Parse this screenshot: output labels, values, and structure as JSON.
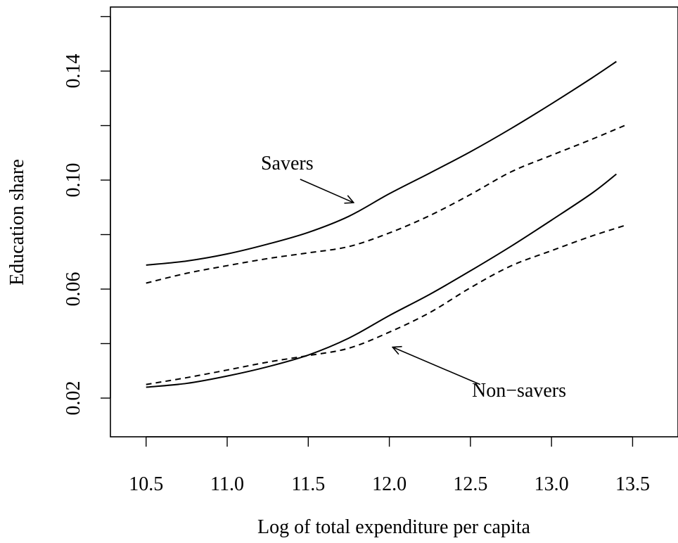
{
  "chart_data": {
    "type": "line",
    "xlabel": "Log of total expenditure per capita",
    "ylabel": "Education share",
    "xlim": [
      10.28,
      13.78
    ],
    "ylim": [
      0.0058,
      0.1635
    ],
    "xticks": [
      10.5,
      11.0,
      11.5,
      12.0,
      12.5,
      13.0,
      13.5
    ],
    "xtick_labels": [
      "10.5",
      "11.0",
      "11.5",
      "12.0",
      "12.5",
      "13.0",
      "13.5"
    ],
    "yticks": [
      0.02,
      0.04,
      0.06,
      0.08,
      0.1,
      0.12,
      0.14,
      0.16
    ],
    "ytick_labels": [
      "0.02",
      "",
      "0.06",
      "",
      "0.10",
      "",
      "0.14",
      ""
    ],
    "grid": false,
    "series": [
      {
        "style": "solid",
        "x": [
          10.5,
          10.75,
          11.0,
          11.25,
          11.5,
          11.75,
          12.0,
          12.25,
          12.5,
          12.75,
          13.0,
          13.25,
          13.4
        ],
        "y": [
          0.0688,
          0.0703,
          0.0729,
          0.0765,
          0.0808,
          0.0867,
          0.095,
          0.1026,
          0.1104,
          0.1189,
          0.128,
          0.1375,
          0.1435
        ]
      },
      {
        "style": "dashed",
        "x": [
          10.5,
          10.75,
          11.0,
          11.25,
          11.5,
          11.75,
          12.0,
          12.25,
          12.5,
          12.75,
          13.0,
          13.25,
          13.45
        ],
        "y": [
          0.0622,
          0.0658,
          0.0686,
          0.0712,
          0.0733,
          0.0756,
          0.0806,
          0.087,
          0.0947,
          0.103,
          0.1091,
          0.115,
          0.12
        ]
      },
      {
        "style": "solid",
        "x": [
          10.5,
          10.75,
          11.0,
          11.25,
          11.5,
          11.75,
          12.0,
          12.25,
          12.5,
          12.75,
          13.0,
          13.25,
          13.4
        ],
        "y": [
          0.024,
          0.0254,
          0.0281,
          0.0315,
          0.0358,
          0.042,
          0.0503,
          0.0581,
          0.0667,
          0.0757,
          0.0853,
          0.0952,
          0.1022
        ]
      },
      {
        "style": "dashed",
        "x": [
          10.5,
          10.75,
          11.0,
          11.25,
          11.5,
          11.75,
          12.0,
          12.25,
          12.5,
          12.75,
          13.0,
          13.25,
          13.45
        ],
        "y": [
          0.025,
          0.0275,
          0.0303,
          0.0332,
          0.0356,
          0.0383,
          0.0442,
          0.0514,
          0.0605,
          0.0685,
          0.0741,
          0.0795,
          0.0833
        ]
      }
    ],
    "annotations": [
      {
        "text": "Savers",
        "text_x": 11.37,
        "text_y": 0.1055,
        "arrow_from": [
          11.45,
          0.1003
        ],
        "arrow_to": [
          11.78,
          0.0917
        ]
      },
      {
        "text": "Non−savers",
        "text_x": 12.8,
        "text_y": 0.0222,
        "arrow_from": [
          12.56,
          0.025
        ],
        "arrow_to": [
          12.02,
          0.0387
        ]
      }
    ]
  }
}
